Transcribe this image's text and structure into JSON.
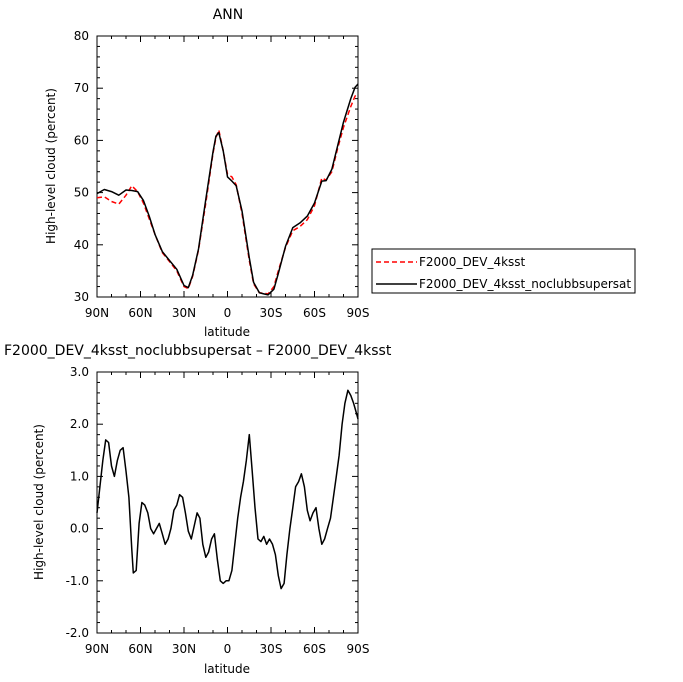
{
  "chart_data": [
    {
      "type": "line",
      "title": "ANN",
      "xlabel": "latitude",
      "ylabel": "High-level cloud (percent)",
      "x_ticks": [
        "90N",
        "60N",
        "30N",
        "0",
        "30S",
        "60S",
        "90S"
      ],
      "y_ticks": [
        "30",
        "40",
        "50",
        "60",
        "70",
        "80"
      ],
      "ylim": [
        30,
        80
      ],
      "xlim": [
        90,
        -90
      ],
      "x": [
        90,
        85,
        80,
        75,
        70,
        66,
        62,
        58,
        54,
        50,
        45,
        40,
        35,
        30,
        27,
        24,
        20,
        15,
        10,
        8,
        6,
        3,
        0,
        -3,
        -6,
        -10,
        -15,
        -18,
        -22,
        -25,
        -28,
        -32,
        -35,
        -40,
        -45,
        -50,
        -55,
        -60,
        -65,
        -68,
        -72,
        -76,
        -80,
        -85,
        -88,
        -90
      ],
      "series": [
        {
          "name": "F2000_DEV_4ksst",
          "color": "#ff0000",
          "dash": "dashed",
          "values": [
            49,
            49.2,
            48.3,
            47.8,
            49.5,
            51.3,
            50.2,
            48,
            45,
            42,
            38.5,
            36.8,
            35,
            32,
            31.6,
            34,
            39,
            48,
            57.5,
            60.5,
            62,
            58,
            53.5,
            53,
            51.5,
            46,
            37,
            32.5,
            30.8,
            30.7,
            30.6,
            32,
            35,
            39.5,
            42.7,
            43.5,
            44.8,
            47.5,
            52.8,
            52.4,
            54,
            58.5,
            62.5,
            66.5,
            68.5,
            69
          ]
        },
        {
          "name": "F2000_DEV_4ksst_noclubbsupersat",
          "color": "#000000",
          "dash": "solid",
          "values": [
            49.8,
            50.6,
            50.2,
            49.5,
            50.5,
            50.4,
            50.2,
            48.5,
            45.5,
            42,
            38.7,
            37,
            35.3,
            32.2,
            31.8,
            34.2,
            39.2,
            48.7,
            57.8,
            60.8,
            61.5,
            58,
            53,
            52.2,
            51.3,
            46.5,
            37.5,
            32.8,
            30.8,
            30.6,
            30.4,
            31.5,
            34.5,
            39.7,
            43.3,
            44.2,
            45.5,
            48,
            52.2,
            52.3,
            54.5,
            59,
            63.5,
            68,
            70.2,
            70.8
          ]
        }
      ],
      "legend": "right"
    },
    {
      "type": "line",
      "title": "F2000_DEV_4ksst_noclubbsupersat – F2000_DEV_4ksst",
      "xlabel": "latitude",
      "ylabel": "High-level cloud (percent)",
      "x_ticks": [
        "90N",
        "60N",
        "30N",
        "0",
        "30S",
        "60S",
        "90S"
      ],
      "y_ticks": [
        "-2.0",
        "-1.0",
        "0.0",
        "1.0",
        "2.0",
        "3.0"
      ],
      "ylim": [
        -2.0,
        3.0
      ],
      "xlim": [
        90,
        -90
      ],
      "x": [
        90,
        88,
        86,
        84,
        82,
        80,
        78,
        76,
        74,
        72,
        70,
        68,
        66,
        65,
        63,
        61,
        59,
        57,
        55,
        53,
        51,
        49,
        47,
        45,
        43,
        41,
        39,
        37,
        35,
        33,
        31,
        29,
        27,
        25,
        23,
        21,
        19,
        17,
        15,
        13,
        11,
        9,
        7,
        5,
        3,
        1,
        -1,
        -3,
        -5,
        -7,
        -9,
        -11,
        -13,
        -15,
        -17,
        -19,
        -21,
        -23,
        -25,
        -27,
        -29,
        -31,
        -33,
        -35,
        -37,
        -39,
        -41,
        -43,
        -45,
        -47,
        -49,
        -51,
        -53,
        -55,
        -57,
        -59,
        -61,
        -63,
        -65,
        -67,
        -69,
        -71,
        -73,
        -75,
        -77,
        -79,
        -81,
        -83,
        -85,
        -87,
        -88,
        -89,
        -90
      ],
      "series": [
        {
          "name": "",
          "color": "#000000",
          "dash": "solid",
          "values": [
            0.3,
            0.8,
            1.3,
            1.7,
            1.65,
            1.2,
            1.0,
            1.3,
            1.5,
            1.55,
            1.1,
            0.6,
            -0.4,
            -0.85,
            -0.8,
            0.1,
            0.5,
            0.45,
            0.3,
            0.0,
            -0.1,
            0.0,
            0.1,
            -0.1,
            -0.3,
            -0.2,
            0.0,
            0.35,
            0.45,
            0.65,
            0.6,
            0.3,
            -0.05,
            -0.2,
            0.05,
            0.3,
            0.2,
            -0.3,
            -0.55,
            -0.45,
            -0.2,
            -0.1,
            -0.6,
            -1.0,
            -1.05,
            -1.0,
            -1.0,
            -0.8,
            -0.3,
            0.2,
            0.6,
            0.9,
            1.3,
            1.8,
            1.1,
            0.4,
            -0.2,
            -0.25,
            -0.15,
            -0.3,
            -0.2,
            -0.3,
            -0.5,
            -0.9,
            -1.15,
            -1.05,
            -0.5,
            0.0,
            0.4,
            0.8,
            0.9,
            1.05,
            0.8,
            0.35,
            0.15,
            0.3,
            0.4,
            0.0,
            -0.3,
            -0.2,
            0.0,
            0.2,
            0.6,
            1.0,
            1.4,
            2.0,
            2.4,
            2.65,
            2.55,
            2.4,
            2.3,
            2.2,
            2.1
          ]
        }
      ]
    }
  ]
}
